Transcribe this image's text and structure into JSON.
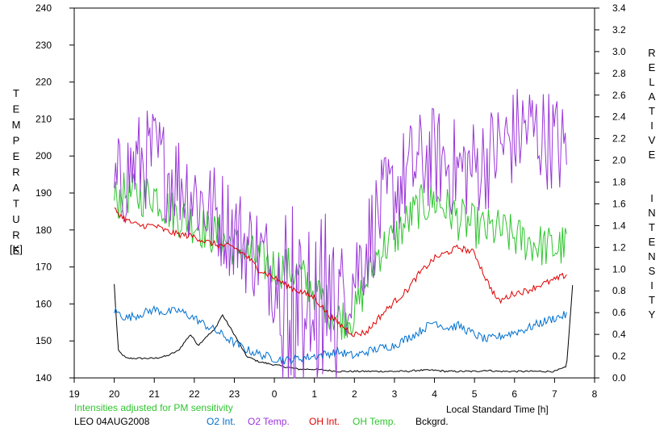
{
  "chart_data": {
    "type": "line",
    "xlabel": "Local Standard Time [h]",
    "ylabel_left": "TEMPERATURE",
    "ylabel_left_unit": "[K]",
    "ylabel_right": "RELATIVE INTENSITY",
    "xlim": [
      19,
      32
    ],
    "x_ticks": [
      19,
      20,
      21,
      22,
      23,
      24,
      25,
      26,
      27,
      28,
      29,
      30,
      31,
      32
    ],
    "x_tick_labels": [
      "19",
      "20",
      "21",
      "22",
      "23",
      "0",
      "1",
      "2",
      "3",
      "4",
      "5",
      "6",
      "7",
      "8"
    ],
    "ylim_left": [
      140,
      240
    ],
    "y_left_ticks": [
      140,
      150,
      160,
      170,
      180,
      190,
      200,
      210,
      220,
      230,
      240
    ],
    "y_left_tick_labels": [
      "140",
      "150",
      "160",
      "170",
      "180",
      "190",
      "200",
      "210",
      "220",
      "230",
      "240"
    ],
    "ylim_right": [
      0,
      3.4
    ],
    "y_right_ticks": [
      0,
      0.2,
      0.4,
      0.6,
      0.8,
      1.0,
      1.2,
      1.4,
      1.6,
      1.8,
      2.0,
      2.2,
      2.4,
      2.6,
      2.8,
      3.0,
      3.2,
      3.4
    ],
    "y_right_tick_labels": [
      "0.0",
      "0.2",
      "0.4",
      "0.6",
      "0.8",
      "1.0",
      "1.2",
      "1.4",
      "1.6",
      "1.8",
      "2.0",
      "2.2",
      "2.4",
      "2.6",
      "2.8",
      "3.0",
      "3.2",
      "3.4"
    ],
    "note": "Intensities adjusted for PM sensitivity",
    "station": "LEO 04AUG2008",
    "series": [
      {
        "name": "O2 Int.",
        "axis": "right",
        "color": "#0070d0",
        "x": [
          20.0,
          20.3,
          20.6,
          21.0,
          21.3,
          21.6,
          22.0,
          22.3,
          22.6,
          23.0,
          23.3,
          23.6,
          24.0,
          24.3,
          24.6,
          25.0,
          25.3,
          25.6,
          26.0,
          26.3,
          26.6,
          27.0,
          27.3,
          27.6,
          28.0,
          28.3,
          28.6,
          29.0,
          29.3,
          29.6,
          30.0,
          30.3,
          30.6,
          31.0,
          31.3
        ],
        "y": [
          0.62,
          0.55,
          0.58,
          0.63,
          0.6,
          0.62,
          0.55,
          0.48,
          0.42,
          0.32,
          0.26,
          0.22,
          0.18,
          0.16,
          0.18,
          0.2,
          0.22,
          0.24,
          0.2,
          0.24,
          0.27,
          0.3,
          0.36,
          0.42,
          0.52,
          0.46,
          0.48,
          0.4,
          0.35,
          0.38,
          0.42,
          0.45,
          0.5,
          0.55,
          0.58
        ]
      },
      {
        "name": "O2 Temp.",
        "axis": "left",
        "color": "#9a35d8",
        "x": [
          20.0,
          20.3,
          20.6,
          21.0,
          21.3,
          21.6,
          22.0,
          22.3,
          22.6,
          23.0,
          23.3,
          23.6,
          24.0,
          24.3,
          24.6,
          25.0,
          25.3,
          25.6,
          26.0,
          26.3,
          26.6,
          27.0,
          27.3,
          27.6,
          28.0,
          28.3,
          28.6,
          29.0,
          29.3,
          29.6,
          30.0,
          30.3,
          30.6,
          31.0,
          31.3
        ],
        "y": [
          190,
          195,
          198,
          200,
          196,
          194,
          190,
          186,
          184,
          180,
          176,
          174,
          168,
          163,
          160,
          158,
          158,
          162,
          168,
          176,
          184,
          190,
          195,
          198,
          200,
          198,
          196,
          197,
          199,
          202,
          205,
          208,
          206,
          204,
          200
        ]
      },
      {
        "name": "OH Int.",
        "axis": "right",
        "color": "#e00000",
        "x": [
          20.0,
          20.3,
          20.6,
          21.0,
          21.3,
          21.6,
          22.0,
          22.3,
          22.6,
          23.0,
          23.3,
          23.6,
          24.0,
          24.3,
          24.6,
          25.0,
          25.3,
          25.6,
          26.0,
          26.3,
          26.6,
          27.0,
          27.3,
          27.6,
          28.0,
          28.3,
          28.6,
          29.0,
          29.3,
          29.6,
          30.0,
          30.3,
          30.6,
          31.0,
          31.3
        ],
        "y": [
          1.55,
          1.45,
          1.4,
          1.4,
          1.35,
          1.32,
          1.3,
          1.25,
          1.22,
          1.2,
          1.12,
          1.0,
          0.92,
          0.85,
          0.8,
          0.74,
          0.6,
          0.5,
          0.4,
          0.42,
          0.55,
          0.7,
          0.8,
          0.95,
          1.1,
          1.15,
          1.2,
          1.15,
          0.9,
          0.7,
          0.78,
          0.8,
          0.85,
          0.9,
          0.95
        ]
      },
      {
        "name": "OH Temp.",
        "axis": "left",
        "color": "#2ec52e",
        "x": [
          20.0,
          20.3,
          20.6,
          21.0,
          21.3,
          21.6,
          22.0,
          22.3,
          22.6,
          23.0,
          23.3,
          23.6,
          24.0,
          24.3,
          24.6,
          25.0,
          25.3,
          25.6,
          26.0,
          26.3,
          26.6,
          27.0,
          27.3,
          27.6,
          28.0,
          28.3,
          28.6,
          29.0,
          29.3,
          29.6,
          30.0,
          30.3,
          30.6,
          31.0,
          31.3
        ],
        "y": [
          188,
          190,
          189,
          190,
          186,
          184,
          182,
          180,
          178,
          176,
          174,
          172,
          170,
          170,
          168,
          164,
          160,
          156,
          157,
          166,
          174,
          178,
          182,
          186,
          188,
          186,
          183,
          181,
          180,
          180,
          178,
          177,
          176,
          175,
          176
        ]
      },
      {
        "name": "Bckgrd.",
        "axis": "right",
        "color": "#000000",
        "x": [
          20.0,
          20.1,
          20.3,
          20.6,
          21.0,
          21.3,
          21.6,
          21.9,
          22.1,
          22.3,
          22.5,
          22.7,
          23.0,
          23.3,
          23.6,
          24.0,
          24.3,
          24.6,
          25.0,
          25.3,
          25.6,
          26.0,
          26.3,
          26.6,
          27.0,
          27.3,
          27.6,
          28.0,
          28.3,
          28.6,
          29.0,
          29.3,
          29.6,
          30.0,
          30.3,
          30.6,
          31.0,
          31.3,
          31.45
        ],
        "y": [
          0.86,
          0.25,
          0.18,
          0.18,
          0.18,
          0.2,
          0.25,
          0.4,
          0.3,
          0.38,
          0.44,
          0.58,
          0.4,
          0.2,
          0.15,
          0.12,
          0.1,
          0.08,
          0.08,
          0.07,
          0.06,
          0.06,
          0.06,
          0.06,
          0.06,
          0.06,
          0.07,
          0.07,
          0.06,
          0.06,
          0.06,
          0.07,
          0.06,
          0.06,
          0.06,
          0.06,
          0.06,
          0.1,
          0.85
        ]
      }
    ]
  }
}
